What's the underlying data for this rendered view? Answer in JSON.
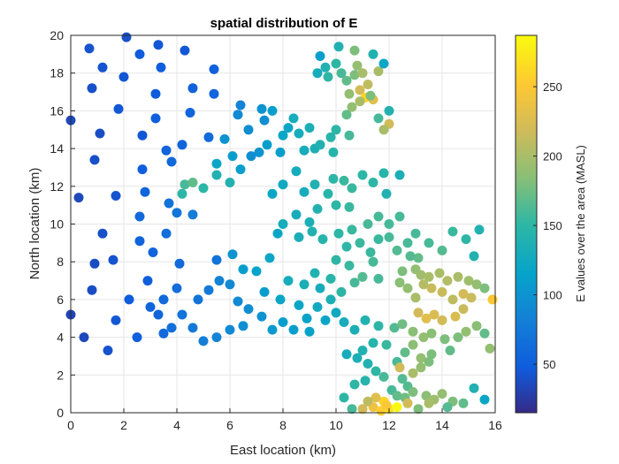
{
  "chart_data": {
    "type": "scatter",
    "title": "spatial distribution of E",
    "xlabel": "East location (km)",
    "ylabel": "North location (km)",
    "xlim": [
      0,
      16
    ],
    "ylim": [
      0,
      20
    ],
    "xticks": [
      "0",
      "2",
      "4",
      "6",
      "8",
      "10",
      "12",
      "14",
      "16"
    ],
    "yticks": [
      "0",
      "2",
      "4",
      "6",
      "8",
      "10",
      "12",
      "14",
      "16",
      "18",
      "20"
    ],
    "grid": true,
    "colormap": "parula",
    "colorbar": {
      "label": "E values over the area (MASL)",
      "range": [
        15,
        287
      ],
      "ticks": [
        "50",
        "100",
        "150",
        "200",
        "250"
      ]
    },
    "points": [
      [
        2.1,
        19.9,
        40
      ],
      [
        0.7,
        19.3,
        42
      ],
      [
        3.3,
        19.5,
        45
      ],
      [
        1.2,
        18.3,
        42
      ],
      [
        2.6,
        19.0,
        48
      ],
      [
        4.3,
        19.2,
        45
      ],
      [
        3.4,
        18.3,
        50
      ],
      [
        5.4,
        18.2,
        52
      ],
      [
        2.0,
        17.8,
        44
      ],
      [
        0.8,
        17.2,
        40
      ],
      [
        3.2,
        16.9,
        48
      ],
      [
        4.6,
        17.2,
        52
      ],
      [
        5.4,
        16.9,
        55
      ],
      [
        1.8,
        16.1,
        45
      ],
      [
        3.2,
        15.6,
        50
      ],
      [
        4.5,
        15.9,
        55
      ],
      [
        0,
        15.5,
        35
      ],
      [
        1.1,
        14.8,
        38
      ],
      [
        2.7,
        14.7,
        45
      ],
      [
        4.2,
        14.2,
        55
      ],
      [
        5.2,
        14.6,
        62
      ],
      [
        0.9,
        13.4,
        40
      ],
      [
        2.7,
        12.9,
        50
      ],
      [
        3.6,
        13.9,
        55
      ],
      [
        3.8,
        13.3,
        60
      ],
      [
        0.3,
        11.4,
        35
      ],
      [
        1.7,
        11.5,
        42
      ],
      [
        2.8,
        11.7,
        55
      ],
      [
        2.6,
        10.4,
        60
      ],
      [
        3.7,
        11.1,
        70
      ],
      [
        4.0,
        10.6,
        72
      ],
      [
        1.2,
        9.5,
        40
      ],
      [
        2.6,
        9.1,
        55
      ],
      [
        3.6,
        9.5,
        65
      ],
      [
        4.6,
        10.5,
        80
      ],
      [
        1.6,
        8.1,
        42
      ],
      [
        3.1,
        8.5,
        55
      ],
      [
        4.1,
        7.9,
        60
      ],
      [
        5.5,
        8.1,
        70
      ],
      [
        0.9,
        7.9,
        38
      ],
      [
        2.9,
        7.0,
        50
      ],
      [
        0,
        5.2,
        32
      ],
      [
        0.8,
        6.5,
        38
      ],
      [
        2.2,
        6.0,
        48
      ],
      [
        0.5,
        4.0,
        35
      ],
      [
        1.7,
        4.9,
        45
      ],
      [
        3.3,
        5.2,
        55
      ],
      [
        2.5,
        4.0,
        50
      ],
      [
        1.4,
        3.3,
        42
      ],
      [
        3.5,
        4.2,
        60
      ],
      [
        4.3,
        12.1,
        160
      ],
      [
        4.6,
        12.2,
        170
      ],
      [
        4.2,
        11.6,
        150
      ],
      [
        5.0,
        11.9,
        150
      ],
      [
        5.5,
        12.6,
        140
      ],
      [
        6.0,
        12.2,
        140
      ],
      [
        5.5,
        13.2,
        120
      ],
      [
        6.1,
        13.6,
        110
      ],
      [
        6.4,
        12.9,
        110
      ],
      [
        5.8,
        14.5,
        100
      ],
      [
        6.8,
        13.6,
        95
      ],
      [
        7.1,
        13.8,
        100
      ],
      [
        6.3,
        15.8,
        90
      ],
      [
        6.7,
        15.0,
        95
      ],
      [
        6.4,
        16.3,
        85
      ],
      [
        7.3,
        15.5,
        95
      ],
      [
        7.2,
        16.1,
        100
      ],
      [
        7.6,
        16.0,
        110
      ],
      [
        7.4,
        14.2,
        110
      ],
      [
        7.9,
        13.8,
        110
      ],
      [
        8.0,
        14.7,
        120
      ],
      [
        8.2,
        15.1,
        120
      ],
      [
        8.4,
        15.6,
        130
      ],
      [
        8.6,
        14.8,
        130
      ],
      [
        9.0,
        15.1,
        135
      ],
      [
        9.2,
        14.0,
        135
      ],
      [
        8.8,
        13.9,
        130
      ],
      [
        9.4,
        14.2,
        140
      ],
      [
        9.8,
        14.6,
        145
      ],
      [
        9.9,
        13.8,
        145
      ],
      [
        9.4,
        18.9,
        110
      ],
      [
        9.3,
        18.0,
        130
      ],
      [
        9.6,
        18.3,
        140
      ],
      [
        10.0,
        18.5,
        150
      ],
      [
        9.7,
        17.8,
        150
      ],
      [
        10.2,
        18.0,
        160
      ],
      [
        10.4,
        17.6,
        170
      ],
      [
        10.7,
        17.9,
        180
      ],
      [
        10.8,
        18.4,
        190
      ],
      [
        11.0,
        18.0,
        200
      ],
      [
        11.2,
        17.4,
        210
      ],
      [
        10.9,
        17.1,
        220
      ],
      [
        11.6,
        18.1,
        200
      ],
      [
        10.7,
        19.2,
        180
      ],
      [
        10.1,
        19.4,
        140
      ],
      [
        11.4,
        19.0,
        140
      ],
      [
        11.8,
        18.5,
        120
      ],
      [
        10.5,
        16.9,
        190
      ],
      [
        11.1,
        16.7,
        260
      ],
      [
        11.4,
        16.6,
        230
      ],
      [
        10.9,
        16.5,
        200
      ],
      [
        10.4,
        15.8,
        170
      ],
      [
        10.6,
        16.2,
        190
      ],
      [
        11.3,
        16.8,
        180
      ],
      [
        11.6,
        15.6,
        160
      ],
      [
        12.0,
        16.0,
        140
      ],
      [
        12.0,
        15.3,
        220
      ],
      [
        11.8,
        15.0,
        200
      ],
      [
        10.5,
        14.7,
        160
      ],
      [
        10.0,
        15.0,
        150
      ],
      [
        8.5,
        12.8,
        130
      ],
      [
        8.0,
        12.1,
        125
      ],
      [
        7.6,
        11.6,
        120
      ],
      [
        8.8,
        11.7,
        130
      ],
      [
        9.2,
        12.1,
        140
      ],
      [
        9.7,
        11.6,
        145
      ],
      [
        9.9,
        12.4,
        150
      ],
      [
        10.3,
        12.3,
        155
      ],
      [
        10.6,
        11.9,
        155
      ],
      [
        11.0,
        12.6,
        150
      ],
      [
        11.4,
        12.2,
        150
      ],
      [
        11.8,
        12.7,
        145
      ],
      [
        11.9,
        11.6,
        140
      ],
      [
        12.4,
        12.6,
        135
      ],
      [
        10.0,
        11.0,
        150
      ],
      [
        10.5,
        10.9,
        155
      ],
      [
        9.3,
        10.8,
        140
      ],
      [
        9.0,
        10.1,
        135
      ],
      [
        8.5,
        10.5,
        130
      ],
      [
        8.0,
        10.0,
        130
      ],
      [
        7.8,
        9.5,
        120
      ],
      [
        8.6,
        9.3,
        135
      ],
      [
        9.1,
        9.6,
        140
      ],
      [
        9.5,
        9.2,
        145
      ],
      [
        10.1,
        9.5,
        150
      ],
      [
        10.6,
        9.7,
        155
      ],
      [
        11.2,
        10.0,
        160
      ],
      [
        11.6,
        10.4,
        160
      ],
      [
        12.0,
        10.0,
        160
      ],
      [
        12.4,
        10.4,
        160
      ],
      [
        10.4,
        8.8,
        150
      ],
      [
        10.9,
        9.0,
        155
      ],
      [
        11.3,
        8.5,
        155
      ],
      [
        11.6,
        9.2,
        155
      ],
      [
        12.0,
        9.3,
        160
      ],
      [
        12.3,
        8.6,
        165
      ],
      [
        12.7,
        9.0,
        160
      ],
      [
        13.0,
        9.5,
        160
      ],
      [
        13.5,
        9.0,
        160
      ],
      [
        14.0,
        8.6,
        165
      ],
      [
        14.4,
        9.6,
        155
      ],
      [
        14.9,
        9.2,
        150
      ],
      [
        15.4,
        9.7,
        140
      ],
      [
        15.2,
        8.3,
        140
      ],
      [
        13.1,
        8.2,
        170
      ],
      [
        12.8,
        8.3,
        165
      ],
      [
        11.4,
        8.0,
        160
      ],
      [
        11.0,
        7.2,
        165
      ],
      [
        11.6,
        7.1,
        160
      ],
      [
        10.5,
        7.8,
        155
      ],
      [
        10.0,
        8.1,
        150
      ],
      [
        10.7,
        6.9,
        160
      ],
      [
        10.2,
        6.4,
        150
      ],
      [
        9.8,
        7.1,
        145
      ],
      [
        9.2,
        7.4,
        140
      ],
      [
        8.8,
        6.8,
        135
      ],
      [
        7.5,
        8.2,
        120
      ],
      [
        7.0,
        7.5,
        115
      ],
      [
        6.5,
        7.6,
        110
      ],
      [
        6.1,
        8.4,
        100
      ],
      [
        12.5,
        7.5,
        180
      ],
      [
        13.0,
        7.6,
        190
      ],
      [
        13.2,
        7.3,
        195
      ],
      [
        13.5,
        7.2,
        200
      ],
      [
        13.9,
        7.4,
        200
      ],
      [
        14.2,
        7.0,
        205
      ],
      [
        14.6,
        7.2,
        200
      ],
      [
        15.0,
        7.0,
        195
      ],
      [
        15.3,
        6.8,
        190
      ],
      [
        15.6,
        6.6,
        180
      ],
      [
        15.9,
        6.0,
        250
      ],
      [
        15.1,
        6.1,
        215
      ],
      [
        14.8,
        6.3,
        220
      ],
      [
        14.4,
        6.0,
        210
      ],
      [
        14.0,
        6.4,
        215
      ],
      [
        13.6,
        6.6,
        215
      ],
      [
        13.3,
        6.8,
        205
      ],
      [
        13.0,
        6.1,
        200
      ],
      [
        12.7,
        6.6,
        190
      ],
      [
        12.4,
        6.9,
        185
      ],
      [
        13.1,
        5.3,
        220
      ],
      [
        13.4,
        5.0,
        230
      ],
      [
        13.7,
        5.2,
        225
      ],
      [
        14.0,
        4.9,
        220
      ],
      [
        14.5,
        5.1,
        225
      ],
      [
        14.8,
        5.5,
        215
      ],
      [
        15.3,
        4.6,
        185
      ],
      [
        15.6,
        4.2,
        170
      ],
      [
        14.9,
        4.3,
        190
      ],
      [
        14.6,
        4.0,
        180
      ],
      [
        12.2,
        4.5,
        165
      ],
      [
        12.5,
        4.7,
        175
      ],
      [
        12.9,
        4.3,
        185
      ],
      [
        13.3,
        4.0,
        190
      ],
      [
        13.6,
        4.2,
        185
      ],
      [
        14.1,
        3.9,
        180
      ],
      [
        12.6,
        3.2,
        170
      ],
      [
        12.9,
        3.6,
        185
      ],
      [
        13.2,
        2.9,
        190
      ],
      [
        13.6,
        3.1,
        180
      ],
      [
        14.3,
        3.3,
        170
      ],
      [
        12.3,
        2.7,
        160
      ],
      [
        12.4,
        2.4,
        220
      ],
      [
        12.9,
        2.1,
        200
      ],
      [
        13.2,
        2.4,
        190
      ],
      [
        13.5,
        2.7,
        180
      ],
      [
        12.5,
        1.8,
        165
      ],
      [
        12.1,
        1.2,
        160
      ],
      [
        12.7,
        1.4,
        165
      ],
      [
        12.3,
        0.9,
        170
      ],
      [
        12.6,
        0.8,
        175
      ],
      [
        12.9,
        1.1,
        180
      ],
      [
        13.4,
        0.9,
        185
      ],
      [
        13.7,
        0.7,
        195
      ],
      [
        14.0,
        1.0,
        190
      ],
      [
        14.4,
        0.6,
        180
      ],
      [
        14.8,
        0.5,
        170
      ],
      [
        15.2,
        1.3,
        140
      ],
      [
        15.6,
        0.7,
        120
      ],
      [
        15.8,
        3.4,
        190
      ],
      [
        11.0,
        0.2,
        220
      ],
      [
        11.4,
        0.3,
        240
      ],
      [
        11.7,
        0.1,
        255
      ],
      [
        12.0,
        0.2,
        270
      ],
      [
        12.3,
        0.3,
        285
      ],
      [
        11.8,
        0.6,
        260
      ],
      [
        11.5,
        0.8,
        230
      ],
      [
        11.2,
        0.6,
        210
      ],
      [
        11.9,
        0.4,
        250
      ],
      [
        12.7,
        0.5,
        220
      ],
      [
        13.1,
        0.2,
        180
      ],
      [
        13.5,
        0.5,
        200
      ],
      [
        14.2,
        0.3,
        165
      ],
      [
        10.6,
        0.2,
        160
      ],
      [
        10.3,
        0.8,
        150
      ],
      [
        10.7,
        1.5,
        150
      ],
      [
        11.1,
        1.7,
        145
      ],
      [
        11.5,
        2.2,
        150
      ],
      [
        11.8,
        1.9,
        160
      ],
      [
        11.2,
        2.6,
        140
      ],
      [
        10.8,
        2.9,
        135
      ],
      [
        10.4,
        3.1,
        130
      ],
      [
        11.0,
        3.3,
        140
      ],
      [
        11.4,
        3.7,
        145
      ],
      [
        11.9,
        3.6,
        155
      ],
      [
        11.6,
        4.6,
        150
      ],
      [
        11.1,
        4.9,
        140
      ],
      [
        10.7,
        4.4,
        135
      ],
      [
        10.3,
        4.8,
        130
      ],
      [
        10.0,
        5.3,
        125
      ],
      [
        9.6,
        4.9,
        120
      ],
      [
        9.3,
        5.6,
        125
      ],
      [
        8.9,
        5.0,
        115
      ],
      [
        8.6,
        5.7,
        120
      ],
      [
        9.8,
        6.0,
        135
      ],
      [
        9.4,
        6.6,
        130
      ],
      [
        9.0,
        4.3,
        115
      ],
      [
        8.4,
        4.4,
        110
      ],
      [
        8.0,
        4.8,
        110
      ],
      [
        7.6,
        4.4,
        105
      ],
      [
        7.2,
        5.1,
        100
      ],
      [
        6.7,
        5.5,
        95
      ],
      [
        6.3,
        5.9,
        90
      ],
      [
        6.0,
        6.8,
        90
      ],
      [
        5.6,
        7.0,
        85
      ],
      [
        7.3,
        6.4,
        110
      ],
      [
        7.9,
        6.0,
        120
      ],
      [
        8.2,
        7.0,
        130
      ],
      [
        6.5,
        4.6,
        95
      ],
      [
        6.0,
        4.4,
        90
      ],
      [
        5.5,
        4.0,
        85
      ],
      [
        5.0,
        3.8,
        80
      ],
      [
        4.6,
        4.5,
        75
      ],
      [
        4.2,
        5.2,
        70
      ],
      [
        4.8,
        6.0,
        70
      ],
      [
        5.2,
        6.5,
        75
      ],
      [
        4.0,
        6.6,
        65
      ],
      [
        3.5,
        6.0,
        60
      ],
      [
        3.0,
        5.6,
        55
      ],
      [
        3.8,
        4.5,
        65
      ]
    ]
  }
}
